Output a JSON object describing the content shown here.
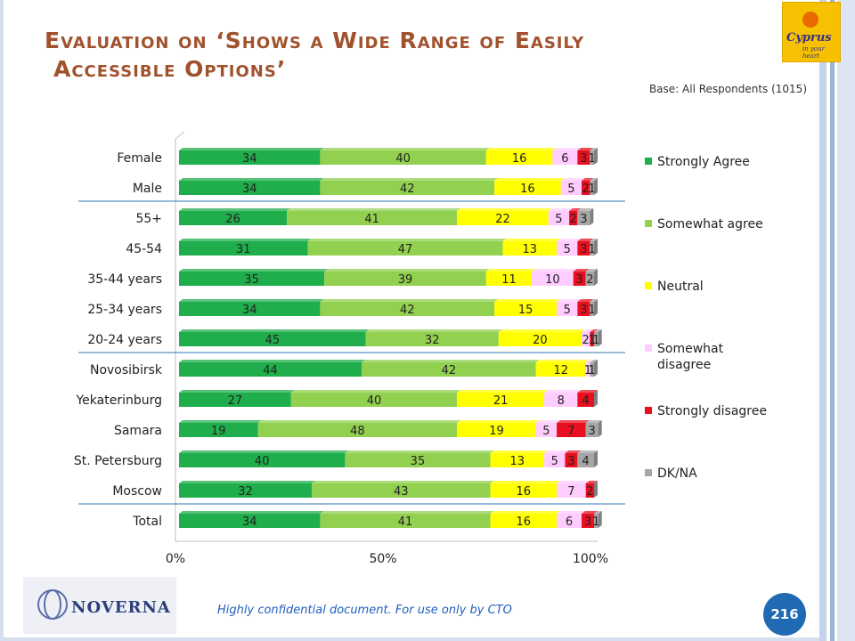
{
  "slide": {
    "title_line1": "Evaluation on ‘Shows a Wide Range of Easily",
    "title_line2": "Accessible Options’",
    "base_note": "Base: All Respondents (1015)",
    "footer_note": "Highly confidential document. For use only by CTO",
    "page_number": "216",
    "logo_top_right": "Cyprus",
    "logo_top_right_tagline": "in your heart",
    "logo_bottom_left": "NOVERNA"
  },
  "chart_data": {
    "type": "bar",
    "orientation": "horizontal",
    "stacked": true,
    "percent_stacked": true,
    "title": "",
    "xlabel": "",
    "ylabel": "",
    "xlim": [
      0,
      100
    ],
    "x_ticks": [
      "0%",
      "50%",
      "100%"
    ],
    "legend_position": "right",
    "categories": [
      "Female",
      "Male",
      "55+",
      "45-54",
      "35-44 years",
      "25-34 years",
      "20-24 years",
      "Novosibirsk",
      "Yekaterinburg",
      "Samara",
      "St. Petersburg",
      "Moscow",
      "Total"
    ],
    "group_separators_after": [
      "Male",
      "20-24 years",
      "Moscow"
    ],
    "series": [
      {
        "name": "Strongly Agree",
        "color": "#1fae4b",
        "values": [
          34,
          34,
          26,
          31,
          35,
          34,
          45,
          44,
          27,
          19,
          40,
          32,
          34
        ]
      },
      {
        "name": "Somewhat agree",
        "color": "#92d050",
        "values": [
          40,
          42,
          41,
          47,
          39,
          42,
          32,
          42,
          40,
          48,
          35,
          43,
          41
        ]
      },
      {
        "name": "Neutral",
        "color": "#ffff00",
        "values": [
          16,
          16,
          22,
          13,
          11,
          15,
          20,
          12,
          21,
          19,
          13,
          16,
          16
        ]
      },
      {
        "name": "Somewhat disagree",
        "color": "#ffccff",
        "values": [
          6,
          5,
          5,
          5,
          10,
          5,
          2,
          1,
          8,
          5,
          5,
          7,
          6
        ]
      },
      {
        "name": "Strongly disagree",
        "color": "#e8101e",
        "values": [
          3,
          2,
          2,
          3,
          3,
          3,
          1,
          0,
          4,
          7,
          3,
          2,
          3
        ]
      },
      {
        "name": "DK/NA",
        "color": "#a6a6a6",
        "values": [
          1,
          1,
          3,
          1,
          2,
          1,
          1,
          1,
          0,
          3,
          4,
          0,
          1
        ]
      }
    ]
  }
}
